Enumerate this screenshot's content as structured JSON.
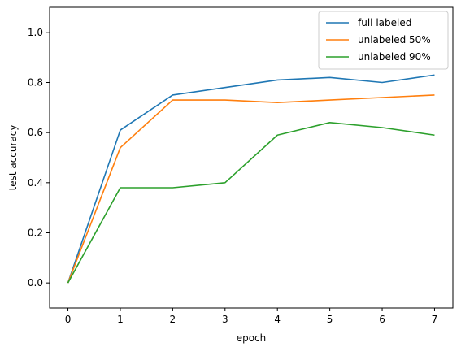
{
  "chart_data": {
    "type": "line",
    "title": "",
    "xlabel": "epoch",
    "ylabel": "test accuracy",
    "x": [
      0,
      1,
      2,
      3,
      4,
      5,
      6,
      7
    ],
    "xlim": [
      -0.35,
      7.35
    ],
    "ylim": [
      -0.1,
      1.1
    ],
    "xticks": [
      "0",
      "1",
      "2",
      "3",
      "4",
      "5",
      "6",
      "7"
    ],
    "yticks": [
      "0.0",
      "0.2",
      "0.4",
      "0.6",
      "0.8",
      "1.0"
    ],
    "grid": false,
    "legend_position": "top-right",
    "series": [
      {
        "name": "full labeled",
        "color": "#1f77b4",
        "values": [
          0.0,
          0.61,
          0.75,
          0.78,
          0.81,
          0.82,
          0.8,
          0.83
        ]
      },
      {
        "name": "unlabeled 50%",
        "color": "#ff7f0e",
        "values": [
          0.0,
          0.54,
          0.73,
          0.73,
          0.72,
          0.73,
          0.74,
          0.75
        ]
      },
      {
        "name": "unlabeled 90%",
        "color": "#2ca02c",
        "values": [
          0.0,
          0.38,
          0.38,
          0.4,
          0.59,
          0.64,
          0.62,
          0.59
        ]
      }
    ]
  }
}
